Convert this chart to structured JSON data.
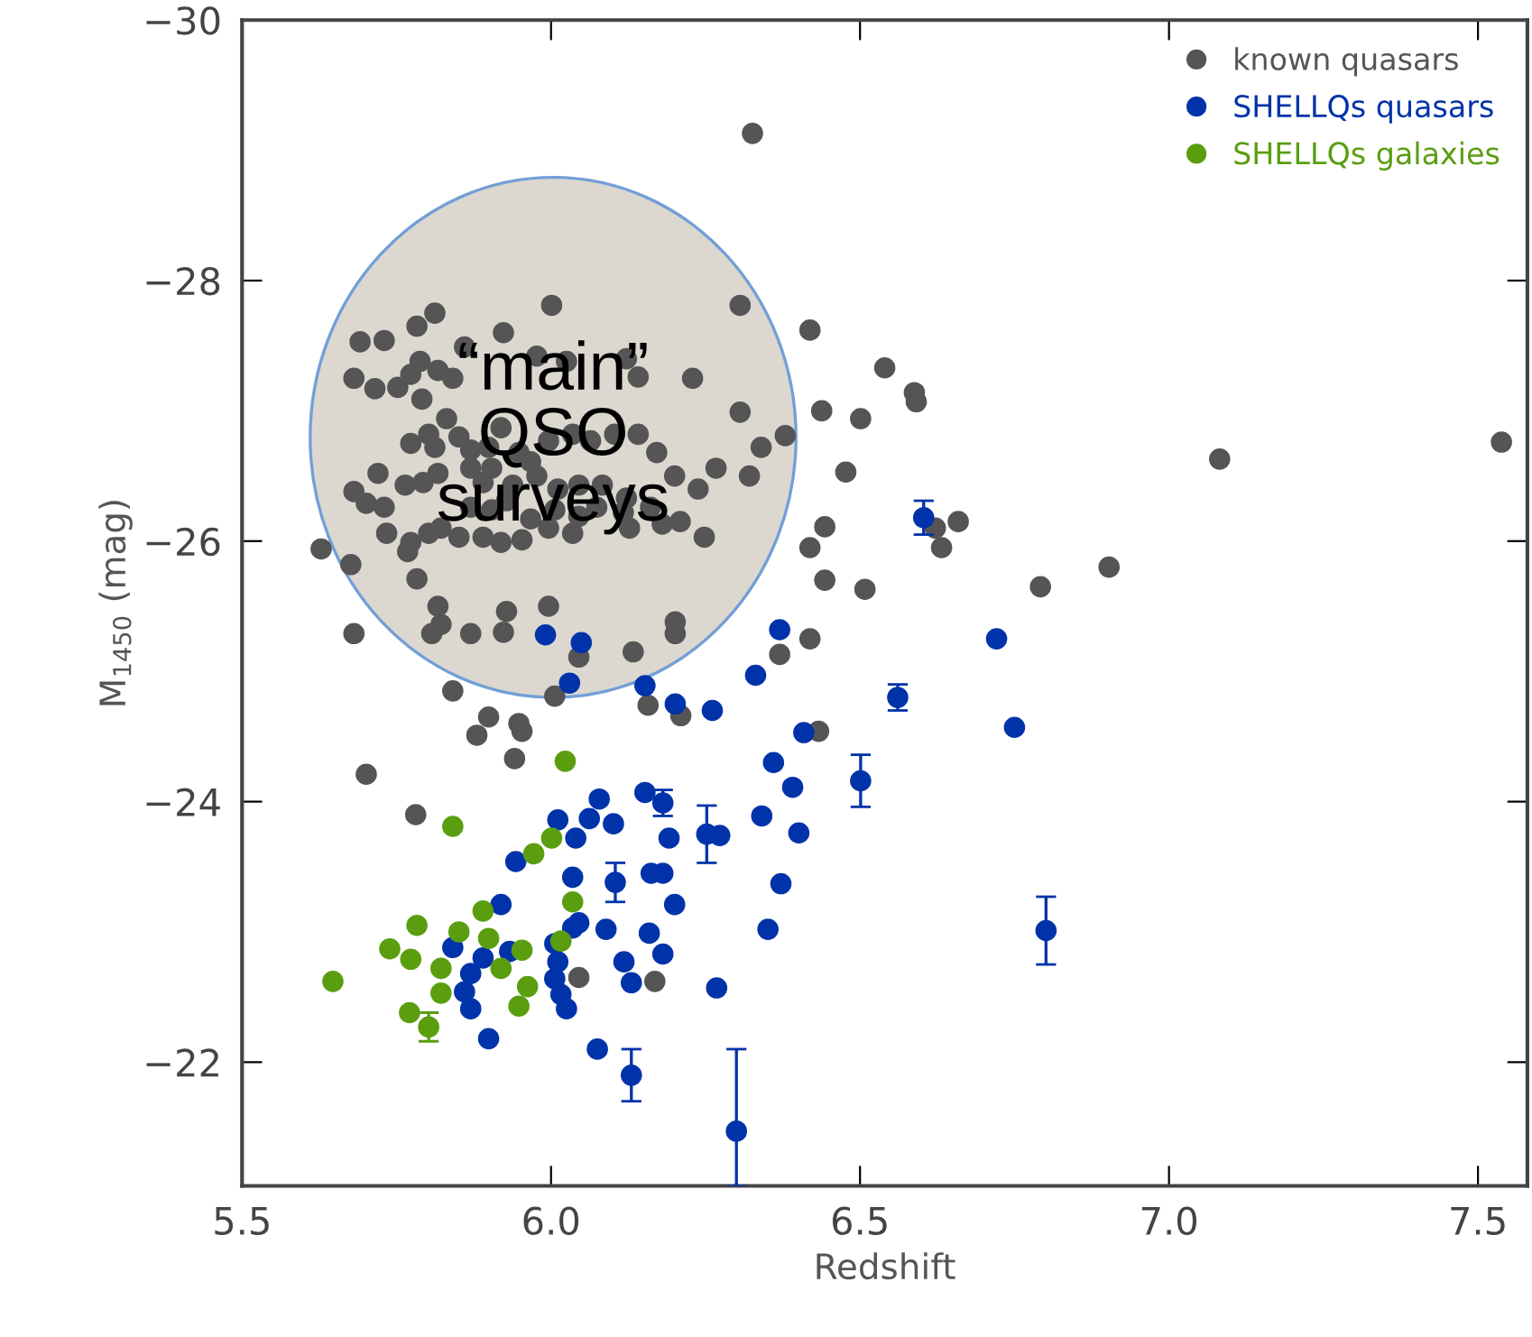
{
  "chart_data": {
    "type": "scatter",
    "xlabel": "Redshift",
    "ylabel": "M$_{1450}$ (mag)",
    "xlim": [
      5.5,
      7.58
    ],
    "ylim": [
      -21.05,
      -30
    ],
    "xticks": [
      5.5,
      {
        "value": 6,
        "label": "6.0"
      },
      6.5,
      {
        "value": 7,
        "label": "7.0"
      },
      7.5
    ],
    "yticks": [
      {
        "value": -30,
        "label": "−30"
      },
      {
        "value": -28,
        "label": "−28"
      },
      {
        "value": -26,
        "label": "−26"
      },
      {
        "value": -24,
        "label": "−24"
      },
      {
        "value": -22,
        "label": "−22"
      }
    ],
    "marker": "circle",
    "legend": "top right",
    "annotations": [
      "“main”\nQSO\nsurveys"
    ],
    "series": [
      {
        "name": "known quasars",
        "color": "#555555",
        "x": [
          6.326,
          5.812,
          5.783,
          5.691,
          5.73,
          5.86,
          5.923,
          6.001,
          6.306,
          5.681,
          5.715,
          5.752,
          5.773,
          5.788,
          5.817,
          5.841,
          5.791,
          5.977,
          6.025,
          6.122,
          6.141,
          6.229,
          6.306,
          6.379,
          6.34,
          6.321,
          5.831,
          5.802,
          5.773,
          5.812,
          5.851,
          5.87,
          5.899,
          5.919,
          5.948,
          5.967,
          5.996,
          6.035,
          6.064,
          6.103,
          6.141,
          6.171,
          5.72,
          5.681,
          5.701,
          5.73,
          5.764,
          5.793,
          5.817,
          5.87,
          5.89,
          5.904,
          5.938,
          5.977,
          6.011,
          6.045,
          6.083,
          6.122,
          6.161,
          6.2,
          6.238,
          6.267,
          5.87,
          5.904,
          5.928,
          5.967,
          6.006,
          6.045,
          6.074,
          6.117,
          6.127,
          6.18,
          6.209,
          6.248,
          5.734,
          5.773,
          5.802,
          5.822,
          5.851,
          5.89,
          5.919,
          5.953,
          5.996,
          6.035,
          5.628,
          5.676,
          5.768,
          5.783,
          5.817,
          5.822,
          5.807,
          5.87,
          5.923,
          5.928,
          5.996,
          6.045,
          6.006,
          5.681,
          5.841,
          5.899,
          5.88,
          5.948,
          5.953,
          5.941,
          5.701,
          5.781,
          6.419,
          6.54,
          6.438,
          6.501,
          6.477,
          6.443,
          6.419,
          6.443,
          6.588,
          6.591,
          7.082,
          7.538,
          6.622,
          6.659,
          6.632,
          6.508,
          6.792,
          6.903,
          6.37,
          6.419,
          6.201,
          6.201,
          6.133,
          6.157,
          6.21,
          6.433,
          6.045,
          6.168
        ],
        "values": [
          -29.13,
          -27.75,
          -27.65,
          -27.53,
          -27.54,
          -27.49,
          -27.6,
          -27.81,
          -27.81,
          -27.25,
          -27.17,
          -27.18,
          -27.28,
          -27.38,
          -27.31,
          -27.25,
          -27.09,
          -27.42,
          -27.38,
          -27.4,
          -27.26,
          -27.25,
          -26.99,
          -26.81,
          -26.72,
          -26.5,
          -26.94,
          -26.82,
          -26.75,
          -26.72,
          -26.8,
          -26.7,
          -26.72,
          -26.87,
          -26.68,
          -26.61,
          -26.77,
          -26.82,
          -26.77,
          -26.82,
          -26.82,
          -26.68,
          -26.52,
          -26.38,
          -26.29,
          -26.26,
          -26.43,
          -26.45,
          -26.52,
          -26.56,
          -26.45,
          -26.56,
          -26.43,
          -26.5,
          -26.4,
          -26.43,
          -26.43,
          -26.33,
          -26.26,
          -26.5,
          -26.4,
          -26.56,
          -26.26,
          -26.24,
          -26.31,
          -26.17,
          -26.24,
          -26.19,
          -26.26,
          -26.22,
          -26.1,
          -26.13,
          -26.15,
          -26.03,
          -26.06,
          -25.99,
          -26.06,
          -26.1,
          -26.03,
          -26.03,
          -25.99,
          -26.01,
          -26.1,
          -26.06,
          -25.94,
          -25.82,
          -25.92,
          -25.71,
          -25.5,
          -25.36,
          -25.29,
          -25.29,
          -25.3,
          -25.46,
          -25.5,
          -25.11,
          -24.81,
          -25.29,
          -24.85,
          -24.65,
          -24.51,
          -24.6,
          -24.54,
          -24.33,
          -24.21,
          -23.9,
          -27.62,
          -27.33,
          -27,
          -26.94,
          -26.53,
          -26.11,
          -25.95,
          -25.7,
          -27.14,
          -27.07,
          -26.63,
          -26.76,
          -26.1,
          -26.15,
          -25.95,
          -25.63,
          -25.65,
          -25.8,
          -25.13,
          -25.25,
          -25.38,
          -25.29,
          -25.15,
          -24.74,
          -24.66,
          -24.54,
          -22.65,
          -22.62
        ]
      },
      {
        "name": "SHELLQs quasars",
        "color": "#0033aa",
        "x": [
          5.991,
          6.049,
          6.03,
          6.078,
          6.011,
          6.062,
          6.04,
          6.603,
          6.37,
          6.152,
          6.331,
          6.201,
          6.261,
          6.409,
          6.36,
          6.391,
          6.501,
          6.561,
          6.721,
          6.75,
          6.341,
          6.401,
          6.101,
          6.152,
          6.181,
          6.191,
          6.252,
          6.273,
          5.943,
          5.919,
          5.841,
          5.89,
          5.933,
          5.87,
          5.86,
          5.87,
          5.899,
          6.006,
          6.011,
          6.006,
          6.016,
          6.025,
          6.035,
          6.045,
          6.035,
          6.104,
          6.162,
          6.181,
          6.372,
          6.351,
          6.801,
          6.3,
          6.075,
          6.13,
          6.2,
          6.089,
          6.159,
          6.181,
          6.118,
          6.13,
          6.268
        ],
        "values": [
          -25.28,
          -25.22,
          -24.91,
          -24.02,
          -23.86,
          -23.87,
          -23.72,
          -26.18,
          -25.32,
          -24.89,
          -24.97,
          -24.75,
          -24.7,
          -24.53,
          -24.3,
          -24.11,
          -24.16,
          -24.8,
          -25.25,
          -24.57,
          -23.89,
          -23.76,
          -23.83,
          -24.07,
          -23.99,
          -23.72,
          -23.75,
          -23.74,
          -23.54,
          -23.21,
          -22.88,
          -22.8,
          -22.85,
          -22.68,
          -22.54,
          -22.41,
          -22.18,
          -22.91,
          -22.77,
          -22.64,
          -22.52,
          -22.41,
          -23.03,
          -23.07,
          -23.42,
          -23.38,
          -23.45,
          -23.45,
          -23.37,
          -23.02,
          -23.01,
          -21.47,
          -22.1,
          -21.9,
          -23.21,
          -23.02,
          -22.99,
          -22.83,
          -22.77,
          -22.61,
          -22.57
        ],
        "errors": [
          null,
          null,
          null,
          null,
          null,
          null,
          null,
          0.13,
          null,
          null,
          null,
          null,
          null,
          null,
          null,
          null,
          0.2,
          0.1,
          null,
          null,
          null,
          null,
          null,
          null,
          0.1,
          null,
          0.22,
          null,
          null,
          null,
          null,
          null,
          null,
          null,
          null,
          null,
          null,
          null,
          null,
          null,
          null,
          null,
          null,
          null,
          null,
          0.15,
          null,
          null,
          null,
          null,
          0.26,
          [
            -22.1,
            -21.05
          ],
          null,
          0.2,
          null,
          null,
          null,
          null,
          null,
          null,
          null
        ]
      },
      {
        "name": "SHELLQs galaxies",
        "color": "#5a9e10",
        "x": [
          6.023,
          5.841,
          6.001,
          5.972,
          5.89,
          6.035,
          5.851,
          5.899,
          5.739,
          5.773,
          5.783,
          5.822,
          5.953,
          5.919,
          5.822,
          5.962,
          5.948,
          5.771,
          5.802,
          5.647,
          6.016
        ],
        "values": [
          -24.31,
          -23.81,
          -23.72,
          -23.6,
          -23.16,
          -23.23,
          -23,
          -22.95,
          -22.87,
          -22.79,
          -23.05,
          -22.72,
          -22.86,
          -22.72,
          -22.53,
          -22.58,
          -22.43,
          -22.38,
          -22.27,
          -22.62,
          -22.93
        ],
        "errors": [
          null,
          null,
          null,
          null,
          null,
          null,
          null,
          null,
          null,
          null,
          null,
          null,
          null,
          null,
          null,
          null,
          null,
          null,
          0.11,
          null,
          null
        ]
      }
    ]
  }
}
